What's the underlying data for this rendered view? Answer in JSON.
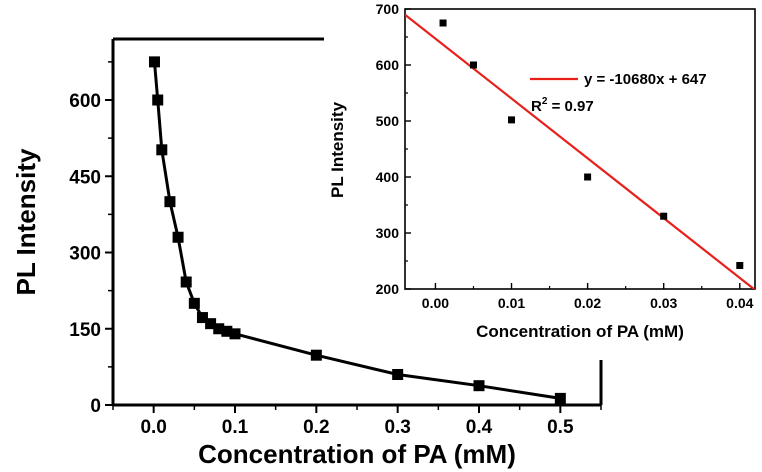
{
  "chart_data": [
    {
      "type": "line",
      "xlabel": "Concentration of PA (mM)",
      "ylabel": "PL Intensity",
      "xlim": [
        -0.05,
        0.55
      ],
      "ylim": [
        0,
        720
      ],
      "xticks": [
        "0.0",
        "0.1",
        "0.2",
        "0.3",
        "0.4",
        "0.5"
      ],
      "yticks": [
        "0",
        "150",
        "300",
        "450",
        "600"
      ],
      "series": [
        {
          "marker": "square",
          "color": "#000000",
          "x": [
            0.001,
            0.005,
            0.01,
            0.02,
            0.03,
            0.04,
            0.05,
            0.06,
            0.07,
            0.08,
            0.09,
            0.1,
            0.2,
            0.3,
            0.4,
            0.5
          ],
          "y": [
            675,
            600,
            502,
            400,
            330,
            242,
            200,
            172,
            160,
            150,
            145,
            140,
            98,
            60,
            38,
            13
          ]
        }
      ]
    },
    {
      "type": "scatter",
      "xlabel": "Concentration of PA (mM)",
      "ylabel": "PL Intensity",
      "xlim": [
        -0.004,
        0.042
      ],
      "ylim": [
        200,
        700
      ],
      "xticks": [
        "0.00",
        "0.01",
        "0.02",
        "0.03",
        "0.04"
      ],
      "yticks": [
        "200",
        "300",
        "400",
        "500",
        "600",
        "700"
      ],
      "series": [
        {
          "marker": "square",
          "color": "#000000",
          "x": [
            0.001,
            0.005,
            0.01,
            0.02,
            0.03,
            0.04
          ],
          "y": [
            675,
            600,
            502,
            400,
            330,
            242
          ]
        }
      ],
      "fit": {
        "slope": -10680,
        "intercept": 647,
        "color": "#e8201a",
        "legend_label": "y = -10680x + 647",
        "r2_label": "R",
        "r2_sup": "2",
        "r2_value": " = 0.97"
      }
    }
  ]
}
